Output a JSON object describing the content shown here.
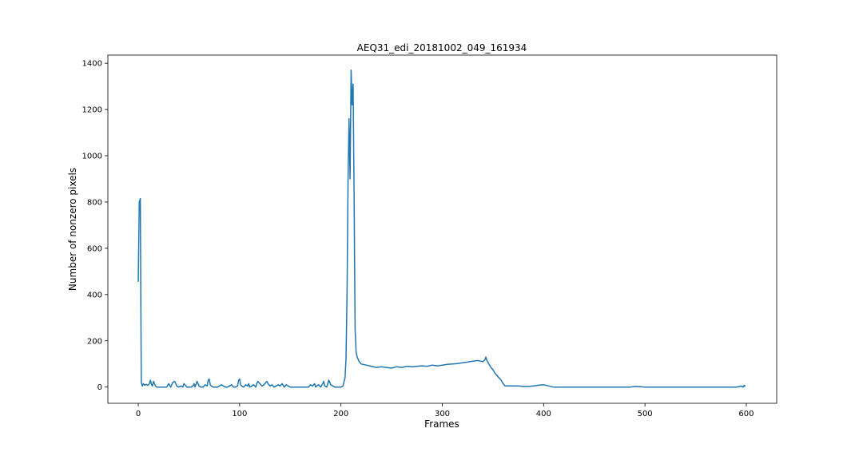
{
  "chart_data": {
    "type": "line",
    "title": "AEQ31_edi_20181002_049_161934",
    "xlabel": "Frames",
    "ylabel": "Number of nonzero pixels",
    "xlim": [
      -30,
      630
    ],
    "ylim": [
      -70,
      1435
    ],
    "xticks": [
      0,
      100,
      200,
      300,
      400,
      500,
      600
    ],
    "yticks": [
      0,
      200,
      400,
      600,
      800,
      1000,
      1200,
      1400
    ],
    "grid": false,
    "line_color": "#1f77b4",
    "series": [
      {
        "x": [
          0,
          1,
          2,
          3,
          4,
          5,
          6,
          7,
          8,
          9,
          10,
          11,
          12,
          13,
          14,
          15,
          16,
          17,
          18,
          19,
          20,
          22,
          25,
          28,
          30,
          32,
          34,
          36,
          38,
          40,
          42,
          44,
          45,
          46,
          48,
          50,
          52,
          54,
          55,
          56,
          58,
          59,
          60,
          62,
          64,
          66,
          68,
          69,
          70,
          71,
          72,
          74,
          76,
          78,
          80,
          82,
          84,
          86,
          88,
          90,
          92,
          94,
          96,
          98,
          99,
          100,
          101,
          102,
          104,
          106,
          108,
          109,
          110,
          112,
          114,
          116,
          117,
          118,
          120,
          122,
          124,
          126,
          127,
          128,
          130,
          132,
          134,
          136,
          138,
          140,
          142,
          144,
          146,
          148,
          150,
          155,
          160,
          165,
          168,
          170,
          172,
          174,
          175,
          176,
          178,
          180,
          182,
          183,
          184,
          186,
          187,
          188,
          190,
          192,
          194,
          196,
          198,
          200,
          202,
          204,
          205,
          206,
          207,
          208,
          209,
          210,
          211,
          212,
          213,
          214,
          215,
          216,
          218,
          220,
          225,
          230,
          235,
          240,
          245,
          250,
          255,
          260,
          265,
          270,
          275,
          280,
          285,
          290,
          295,
          300,
          305,
          310,
          315,
          320,
          325,
          330,
          335,
          338,
          340,
          342,
          343,
          344,
          346,
          348,
          350,
          352,
          355,
          358,
          360,
          362,
          365,
          370,
          375,
          380,
          385,
          390,
          395,
          400,
          405,
          410,
          420,
          440,
          460,
          480,
          485,
          490,
          495,
          500,
          520,
          540,
          560,
          580,
          590,
          593,
          595,
          597,
          598,
          599
        ],
        "y": [
          455,
          800,
          815,
          20,
          5,
          15,
          8,
          10,
          12,
          8,
          10,
          15,
          30,
          12,
          5,
          25,
          15,
          5,
          0,
          0,
          0,
          0,
          0,
          0,
          15,
          0,
          20,
          25,
          5,
          0,
          5,
          0,
          15,
          10,
          0,
          0,
          0,
          5,
          15,
          0,
          25,
          15,
          5,
          0,
          0,
          10,
          5,
          30,
          35,
          10,
          5,
          0,
          0,
          0,
          5,
          10,
          5,
          0,
          0,
          5,
          10,
          0,
          0,
          5,
          30,
          35,
          10,
          5,
          0,
          10,
          5,
          15,
          0,
          5,
          10,
          0,
          15,
          25,
          15,
          5,
          10,
          20,
          25,
          15,
          5,
          10,
          0,
          5,
          10,
          5,
          15,
          0,
          10,
          5,
          0,
          0,
          0,
          0,
          0,
          10,
          5,
          15,
          0,
          5,
          10,
          0,
          15,
          25,
          5,
          0,
          15,
          30,
          10,
          5,
          0,
          0,
          0,
          0,
          5,
          40,
          120,
          400,
          900,
          1160,
          900,
          1370,
          1220,
          1310,
          800,
          250,
          150,
          130,
          110,
          100,
          95,
          90,
          85,
          88,
          85,
          82,
          88,
          85,
          90,
          88,
          90,
          92,
          90,
          95,
          92,
          95,
          98,
          100,
          102,
          105,
          108,
          112,
          115,
          112,
          110,
          118,
          130,
          115,
          100,
          85,
          75,
          60,
          45,
          30,
          15,
          5,
          5,
          5,
          5,
          3,
          3,
          5,
          8,
          10,
          5,
          0,
          0,
          0,
          0,
          0,
          0,
          3,
          2,
          0,
          0,
          0,
          0,
          0,
          0,
          2,
          5,
          0,
          8,
          3
        ]
      }
    ]
  }
}
